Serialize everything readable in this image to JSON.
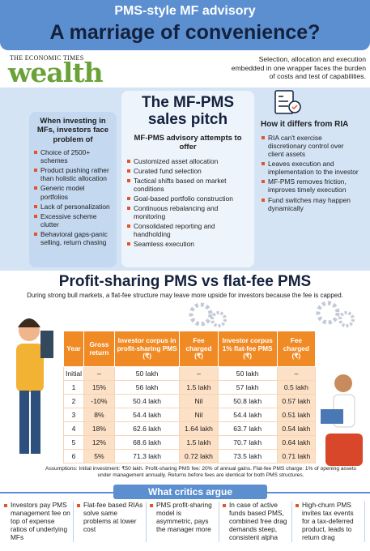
{
  "header": {
    "kicker": "PMS-style MF advisory",
    "title": "A marriage of convenience?"
  },
  "logo": {
    "masthead": "THE ECONOMIC TIMES",
    "brand": "wealth"
  },
  "intro": "Selection, allocation and execution embedded in one wrapper faces the burden of costs and test of capabilities.",
  "problems": {
    "heading": "When investing in MFs, investors face problem of",
    "items": [
      "Choice of 2500+ schemes",
      "Product pushing rather than holistic allocation",
      "Generic model portfolios",
      "Lack of personalization",
      "Excessive scheme clutter",
      "Behavioral gaps-panic selling, return chasing"
    ]
  },
  "pitch": {
    "title": "The MF-PMS sales pitch",
    "subtitle": "MF-PMS advisory attempts to offer",
    "items": [
      "Customized asset allocation",
      "Curated fund selection",
      "Tactical shifts based on market conditions",
      "Goal-based portfolio construction",
      "Continuous rebalancing and monitoring",
      "Consolidated reporting and handholding",
      "Seamless execution"
    ]
  },
  "ria": {
    "heading": "How it differs from RIA",
    "items": [
      "RIA can't exercise discretionary control over client assets",
      "Leaves execution and implementation to the investor",
      "MF-PMS removes friction, improves timely execution",
      "Fund switches may happen dynamically"
    ]
  },
  "comparison": {
    "title": "Profit-sharing PMS vs flat-fee PMS",
    "subtitle": "During strong bull markets, a flat-fee structure may leave more upside for investors because the fee is capped."
  },
  "table": {
    "columns": [
      "Year",
      "Gross return",
      "Investor corpus in profit-sharing PMS (₹)",
      "Fee charged (₹)",
      "Investor corpus 1% flat-fee PMS (₹)",
      "Fee charged (₹)"
    ],
    "rows": [
      [
        "Initial",
        "–",
        "50 lakh",
        "–",
        "50 lakh",
        "–"
      ],
      [
        "1",
        "15%",
        "56 lakh",
        "1.5 lakh",
        "57 lakh",
        "0.5 lakh"
      ],
      [
        "2",
        "-10%",
        "50.4 lakh",
        "Nil",
        "50.8 lakh",
        "0.57 lakh"
      ],
      [
        "3",
        "8%",
        "54.4 lakh",
        "Nil",
        "54.4 lakh",
        "0.51 lakh"
      ],
      [
        "4",
        "18%",
        "62.6 lakh",
        "1.64 lakh",
        "63.7 lakh",
        "0.54 lakh"
      ],
      [
        "5",
        "12%",
        "68.6 lakh",
        "1.5 lakh",
        "70.7 lakh",
        "0.64 lakh"
      ],
      [
        "6",
        "5%",
        "71.3 lakh",
        "0.72 lakh",
        "73.5 lakh",
        "0.71 lakh"
      ]
    ]
  },
  "assumptions": "Assumptions: Initial investment: ₹50 lakh. Profit-sharing PMS fee: 20% of annual gains. Flat-fee PMS charge: 1% of opening assets under management annually. Returns before fees are identical for both PMS structures.",
  "critics": {
    "heading": "What critics argue",
    "items": [
      "Investors pay PMS management fee on top of expense ratios of underlying MFs",
      "Flat-fee based RIAs solve same problems at lower cost",
      "PMS profit-sharing model is asymmetric, pays the manager more",
      "In case of active funds based PMS, combined free drag demands steep, consistent alpha",
      "High-churn PMS invites tax events for a tax-deferred product, leads to return drag"
    ]
  }
}
